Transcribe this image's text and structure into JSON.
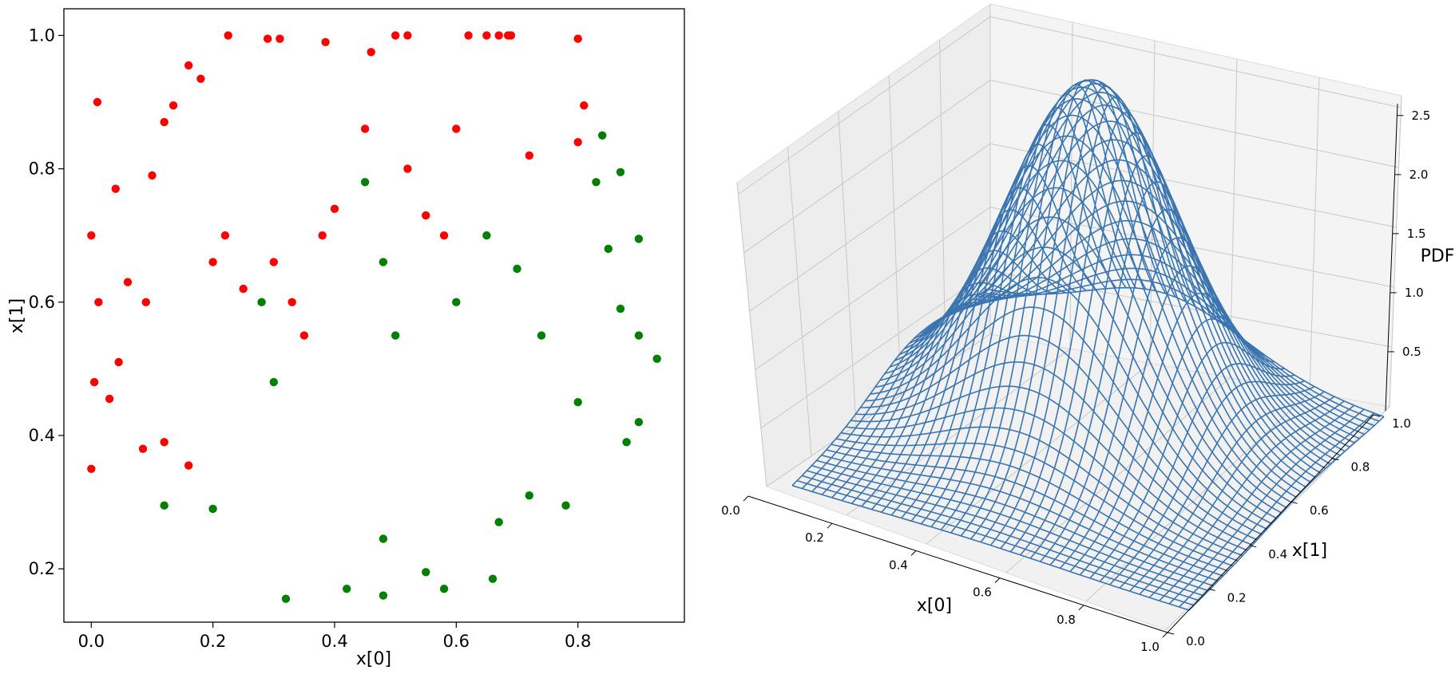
{
  "chart_data": [
    {
      "type": "scatter",
      "title": "",
      "xlabel": "x[0]",
      "ylabel": "x[1]",
      "xlim": [
        -0.045,
        0.975
      ],
      "ylim": [
        0.12,
        1.04
      ],
      "xticks": [
        0.0,
        0.2,
        0.4,
        0.6,
        0.8
      ],
      "xtick_labels": [
        "0.0",
        "0.2",
        "0.4",
        "0.6",
        "0.8"
      ],
      "yticks": [
        0.2,
        0.4,
        0.6,
        0.8,
        1.0
      ],
      "ytick_labels": [
        "0.2",
        "0.4",
        "0.6",
        "0.8",
        "1.0"
      ],
      "grid": false,
      "series": [
        {
          "color": "#ff0000",
          "points": [
            [
              0.0,
              0.7
            ],
            [
              0.0,
              0.35
            ],
            [
              0.005,
              0.48
            ],
            [
              0.01,
              0.9
            ],
            [
              0.012,
              0.6
            ],
            [
              0.03,
              0.455
            ],
            [
              0.045,
              0.51
            ],
            [
              0.04,
              0.77
            ],
            [
              0.06,
              0.63
            ],
            [
              0.085,
              0.38
            ],
            [
              0.09,
              0.6
            ],
            [
              0.1,
              0.79
            ],
            [
              0.12,
              0.87
            ],
            [
              0.135,
              0.895
            ],
            [
              0.16,
              0.955
            ],
            [
              0.18,
              0.935
            ],
            [
              0.225,
              1.0
            ],
            [
              0.29,
              0.995
            ],
            [
              0.31,
              0.995
            ],
            [
              0.385,
              0.99
            ],
            [
              0.46,
              0.975
            ],
            [
              0.5,
              1.0
            ],
            [
              0.52,
              1.0
            ],
            [
              0.62,
              1.0
            ],
            [
              0.65,
              1.0
            ],
            [
              0.67,
              1.0
            ],
            [
              0.685,
              1.0
            ],
            [
              0.69,
              1.0
            ],
            [
              0.8,
              0.995
            ],
            [
              0.81,
              0.895
            ],
            [
              0.8,
              0.84
            ],
            [
              0.16,
              0.355
            ],
            [
              0.12,
              0.39
            ],
            [
              0.2,
              0.66
            ],
            [
              0.22,
              0.7
            ],
            [
              0.25,
              0.62
            ],
            [
              0.3,
              0.66
            ],
            [
              0.33,
              0.6
            ],
            [
              0.35,
              0.55
            ],
            [
              0.38,
              0.7
            ],
            [
              0.4,
              0.74
            ],
            [
              0.45,
              0.86
            ],
            [
              0.52,
              0.8
            ],
            [
              0.55,
              0.73
            ],
            [
              0.58,
              0.7
            ],
            [
              0.6,
              0.86
            ],
            [
              0.72,
              0.82
            ]
          ]
        },
        {
          "color": "#008000",
          "points": [
            [
              0.12,
              0.295
            ],
            [
              0.2,
              0.29
            ],
            [
              0.32,
              0.155
            ],
            [
              0.42,
              0.17
            ],
            [
              0.48,
              0.16
            ],
            [
              0.48,
              0.245
            ],
            [
              0.55,
              0.195
            ],
            [
              0.58,
              0.17
            ],
            [
              0.66,
              0.185
            ],
            [
              0.67,
              0.27
            ],
            [
              0.72,
              0.31
            ],
            [
              0.78,
              0.295
            ],
            [
              0.88,
              0.39
            ],
            [
              0.9,
              0.42
            ],
            [
              0.9,
              0.55
            ],
            [
              0.93,
              0.515
            ],
            [
              0.87,
              0.59
            ],
            [
              0.9,
              0.695
            ],
            [
              0.87,
              0.795
            ],
            [
              0.84,
              0.85
            ],
            [
              0.83,
              0.78
            ],
            [
              0.85,
              0.68
            ],
            [
              0.28,
              0.6
            ],
            [
              0.3,
              0.48
            ],
            [
              0.45,
              0.78
            ],
            [
              0.48,
              0.66
            ],
            [
              0.5,
              0.55
            ],
            [
              0.6,
              0.6
            ],
            [
              0.65,
              0.7
            ],
            [
              0.7,
              0.65
            ],
            [
              0.74,
              0.55
            ],
            [
              0.8,
              0.45
            ]
          ]
        }
      ]
    },
    {
      "type": "surface",
      "title": "",
      "xlabel": "x[0]",
      "ylabel": "x[1]",
      "zlabel": "PDF",
      "xlim": [
        0.0,
        1.0
      ],
      "ylim": [
        0.0,
        1.0
      ],
      "zlim": [
        0.0,
        2.6
      ],
      "xticks": [
        0.0,
        0.2,
        0.4,
        0.6,
        0.8,
        1.0
      ],
      "xtick_labels": [
        "0.0",
        "0.2",
        "0.4",
        "0.6",
        "0.8",
        "1.0"
      ],
      "yticks": [
        0.0,
        0.2,
        0.4,
        0.6,
        0.8,
        1.0
      ],
      "ytick_labels": [
        "0.0",
        "0.2",
        "0.4",
        "0.6",
        "0.8",
        "1.0"
      ],
      "zticks": [
        0.5,
        1.0,
        1.5,
        2.0,
        2.5
      ],
      "ztick_labels": [
        "0.5",
        "1.0",
        "1.5",
        "2.0",
        "2.5"
      ],
      "grid": true,
      "wireframe_color": "#3a75b0",
      "peak": {
        "x": 0.45,
        "y": 0.62,
        "pdf": 2.45
      }
    }
  ]
}
